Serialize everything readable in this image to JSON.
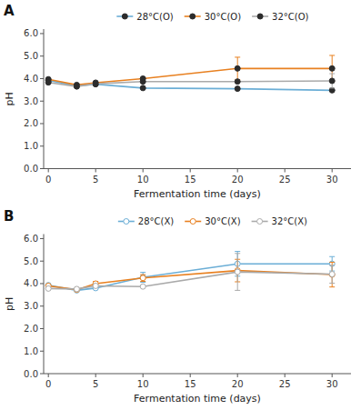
{
  "chart_data": [
    {
      "type": "line",
      "title": "A",
      "xlabel": "Fermentation time (days)",
      "ylabel": "pH",
      "x": [
        0,
        3,
        5,
        10,
        20,
        30
      ],
      "series": [
        {
          "name": "28°C(O)",
          "color": "#6BAED6",
          "marker": "filled-circle",
          "line_style": "solid",
          "values": [
            3.92,
            3.68,
            3.75,
            3.58,
            3.55,
            3.48
          ],
          "errors": [
            0.0,
            0.0,
            0.0,
            0.0,
            0.0,
            0.0
          ]
        },
        {
          "name": "30°C(O)",
          "color": "#E88020",
          "marker": "filled-circle",
          "line_style": "solid",
          "values": [
            3.97,
            3.72,
            3.82,
            4.0,
            4.45,
            4.45
          ],
          "errors": [
            0.0,
            0.0,
            0.0,
            0.0,
            0.5,
            0.58
          ]
        },
        {
          "name": "32°C(O)",
          "color": "#AAAAAA",
          "marker": "filled-circle",
          "line_style": "solid",
          "values": [
            3.83,
            3.65,
            3.77,
            3.87,
            3.87,
            3.9
          ],
          "errors": [
            0.0,
            0.0,
            0.0,
            0.0,
            0.0,
            0.32
          ]
        }
      ],
      "xlim": [
        -0.5,
        32
      ],
      "xticks": [
        0,
        5,
        10,
        15,
        20,
        25,
        30
      ],
      "ylim": [
        0.0,
        6.2
      ],
      "yticks": [
        {
          "value": 0.0,
          "label": "0.0"
        },
        {
          "value": 1.0,
          "label": "1.0"
        },
        {
          "value": 2.0,
          "label": "2.0"
        },
        {
          "value": 3.0,
          "label": "3.0"
        },
        {
          "value": 4.0,
          "label": "4.0"
        },
        {
          "value": 5.0,
          "label": "5.0"
        },
        {
          "value": 6.0,
          "label": "6.0"
        }
      ],
      "grid": false,
      "legend": "top"
    },
    {
      "type": "line",
      "title": "B",
      "xlabel": "Fermentation time (days)",
      "ylabel": "pH",
      "x": [
        0,
        3,
        5,
        10,
        20,
        30
      ],
      "series": [
        {
          "name": "28°C(X)",
          "color": "#6BAED6",
          "marker": "open-circle",
          "line_style": "solid",
          "values": [
            3.93,
            3.7,
            3.8,
            4.28,
            4.88,
            4.88
          ],
          "errors": [
            0.0,
            0.0,
            0.0,
            0.22,
            0.55,
            0.32
          ]
        },
        {
          "name": "30°C(X)",
          "color": "#E88020",
          "marker": "open-circle",
          "line_style": "solid",
          "values": [
            3.9,
            3.73,
            4.0,
            4.25,
            4.58,
            4.4
          ],
          "errors": [
            0.0,
            0.0,
            0.1,
            0.15,
            0.5,
            0.55
          ]
        },
        {
          "name": "32°C(X)",
          "color": "#AAAAAA",
          "marker": "open-circle",
          "line_style": "solid",
          "values": [
            3.78,
            3.76,
            3.9,
            3.87,
            4.52,
            4.42
          ],
          "errors": [
            0.0,
            0.0,
            0.0,
            0.0,
            0.82,
            0.4
          ]
        }
      ],
      "xlim": [
        -0.5,
        32
      ],
      "xticks": [
        0,
        5,
        10,
        15,
        20,
        25,
        30
      ],
      "ylim": [
        0.0,
        6.2
      ],
      "yticks": [
        {
          "value": 0.0,
          "label": "0.0"
        },
        {
          "value": 1.0,
          "label": "1.0"
        },
        {
          "value": 2.0,
          "label": "2.0"
        },
        {
          "value": 3.0,
          "label": "3.0"
        },
        {
          "value": 4.0,
          "label": "4.0"
        },
        {
          "value": 5.0,
          "label": "5.0"
        },
        {
          "value": 6.0,
          "label": "6.0"
        }
      ],
      "grid": false,
      "legend": "top"
    }
  ]
}
